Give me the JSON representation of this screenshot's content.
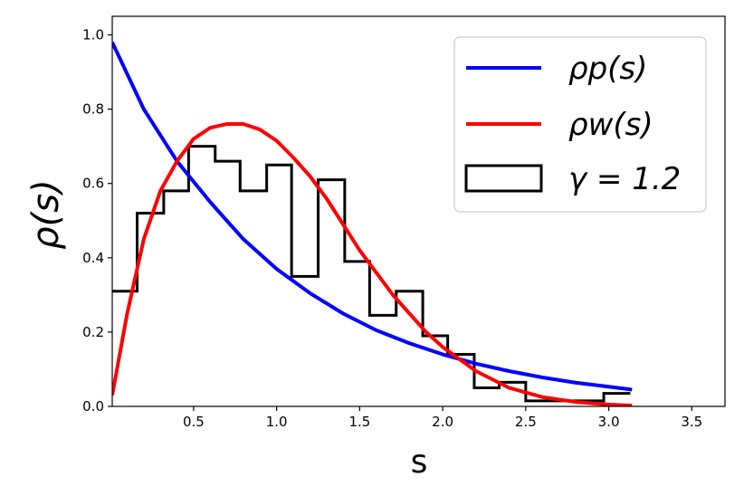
{
  "chart_data": {
    "type": "line",
    "xlabel": "s",
    "ylabel": "ρ(s)",
    "xlim": [
      0.01,
      3.7
    ],
    "ylim": [
      0.0,
      1.05
    ],
    "x_ticks": [
      "0.5",
      "1.0",
      "1.5",
      "2.0",
      "2.5",
      "3.0",
      "3.5"
    ],
    "y_ticks": [
      "0.0",
      "0.2",
      "0.4",
      "0.6",
      "0.8",
      "1.0"
    ],
    "grid": false,
    "legend_position": "top-right",
    "series": [
      {
        "name": "ρp(s)",
        "kind": "line",
        "color": "#0000ff",
        "x": [
          0.01,
          0.2,
          0.4,
          0.6,
          0.8,
          1.0,
          1.2,
          1.4,
          1.6,
          1.8,
          2.0,
          2.2,
          2.4,
          2.6,
          2.8,
          3.0,
          3.14
        ],
        "y": [
          0.98,
          0.8,
          0.66,
          0.55,
          0.45,
          0.37,
          0.305,
          0.25,
          0.205,
          0.17,
          0.14,
          0.115,
          0.095,
          0.078,
          0.064,
          0.053,
          0.045
        ]
      },
      {
        "name": "ρw(s)",
        "kind": "line",
        "color": "#ff0000",
        "x": [
          0.01,
          0.1,
          0.2,
          0.3,
          0.4,
          0.5,
          0.6,
          0.7,
          0.8,
          0.9,
          1.0,
          1.1,
          1.2,
          1.3,
          1.4,
          1.5,
          1.6,
          1.7,
          1.8,
          1.9,
          2.0,
          2.2,
          2.4,
          2.6,
          2.8,
          3.0,
          3.14
        ],
        "y": [
          0.03,
          0.25,
          0.45,
          0.58,
          0.66,
          0.72,
          0.75,
          0.76,
          0.76,
          0.745,
          0.715,
          0.67,
          0.62,
          0.56,
          0.49,
          0.42,
          0.36,
          0.3,
          0.25,
          0.2,
          0.16,
          0.095,
          0.05,
          0.025,
          0.012,
          0.005,
          0.002
        ]
      },
      {
        "name": "γ = 1.2",
        "kind": "step-histogram",
        "color": "#000000",
        "bin_edges": [
          0.01,
          0.16,
          0.32,
          0.47,
          0.63,
          0.78,
          0.94,
          1.09,
          1.25,
          1.41,
          1.56,
          1.72,
          1.88,
          2.03,
          2.19,
          2.34,
          2.5,
          2.66,
          2.81,
          2.97,
          3.13
        ],
        "counts": [
          0.31,
          0.52,
          0.58,
          0.7,
          0.66,
          0.58,
          0.65,
          0.35,
          0.61,
          0.39,
          0.245,
          0.31,
          0.19,
          0.14,
          0.05,
          0.065,
          0.015,
          0.015,
          0.015,
          0.035
        ]
      }
    ]
  }
}
